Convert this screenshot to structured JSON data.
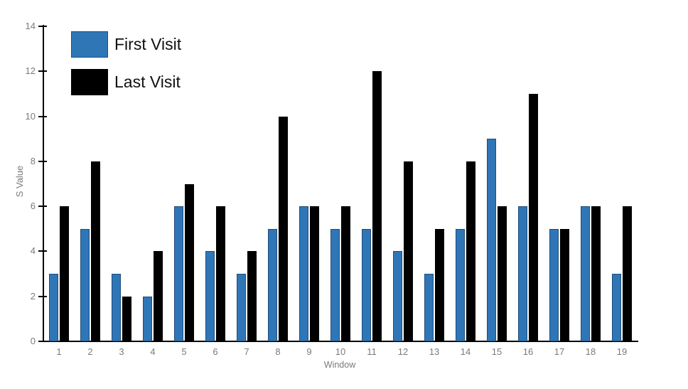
{
  "chart_data": {
    "type": "bar",
    "title": "",
    "xlabel": "Window",
    "ylabel": "S Value",
    "categories": [
      "1",
      "2",
      "3",
      "4",
      "5",
      "6",
      "7",
      "8",
      "9",
      "10",
      "11",
      "12",
      "13",
      "14",
      "15",
      "16",
      "17",
      "18",
      "19"
    ],
    "series": [
      {
        "name": "First Visit",
        "color": "#2F76B7",
        "border": "#1F4E79",
        "values": [
          3,
          5,
          3,
          2,
          6,
          4,
          3,
          5,
          6,
          5,
          5,
          4,
          3,
          5,
          9,
          6,
          5,
          6,
          3
        ]
      },
      {
        "name": "Last Visit",
        "color": "#000000",
        "border": "#000000",
        "values": [
          6,
          8,
          2,
          4,
          7,
          6,
          4,
          10,
          6,
          6,
          12,
          8,
          5,
          8,
          6,
          11,
          5,
          6,
          6
        ]
      }
    ],
    "ylim": [
      0,
      14
    ],
    "ytick_step": 2,
    "yticks": [
      0,
      2,
      4,
      6,
      8,
      10,
      12,
      14
    ],
    "grid": false,
    "legend_position": "upper-left-inside",
    "axis_color": "#000000",
    "tick_label_color": "#7A7A7A",
    "background_color": "#FFFFFF"
  }
}
